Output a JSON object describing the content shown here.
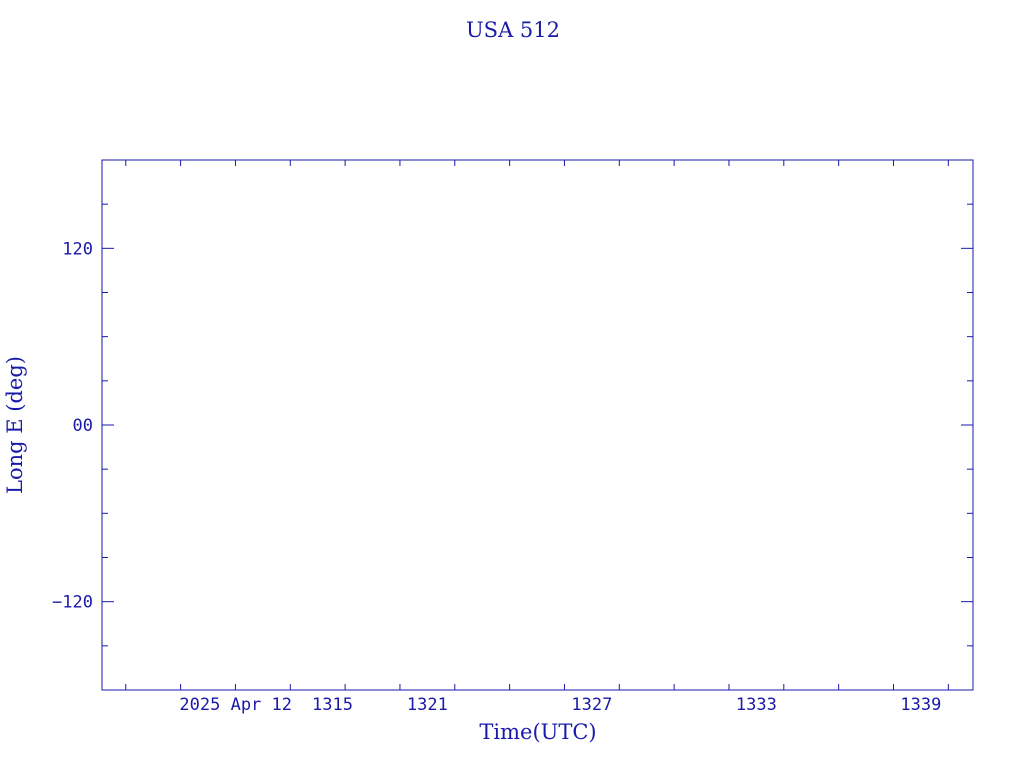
{
  "chart_data": {
    "type": "line",
    "title": "USA 512",
    "xlabel": "Time(UTC)",
    "ylabel": "Long E (deg)",
    "date_label": "2025 Apr 12",
    "xlim": [
      "13:09:08",
      "13:40:54"
    ],
    "ylim": [
      -180,
      180
    ],
    "x_major_ticks": [
      "13:15",
      "13:21",
      "13:27",
      "13:33",
      "13:39"
    ],
    "x_tick_labels": [
      "1315",
      "1321",
      "1327",
      "1333",
      "1339"
    ],
    "x_minor_step_min": 2,
    "y_major_ticks": [
      120,
      0,
      -120
    ],
    "y_tick_labels": [
      "120",
      "00",
      "−120"
    ],
    "y_minor_step": 30,
    "series": [],
    "grid": false,
    "colors": {
      "ink": "#1a1aa8"
    }
  }
}
